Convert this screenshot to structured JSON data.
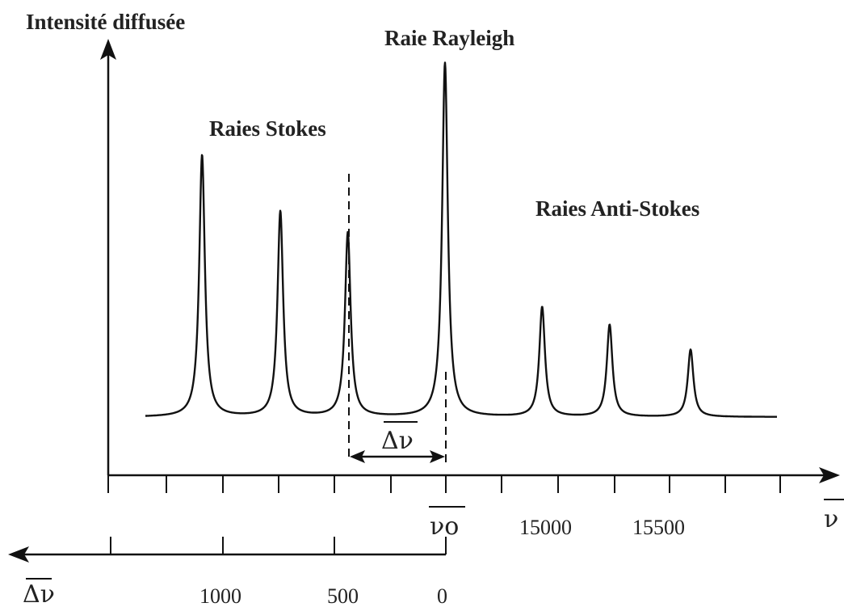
{
  "chart_data": {
    "type": "line",
    "title": "",
    "ylabel": "Intensité diffusée",
    "xlabel": "ν",
    "xlabel_overline": true,
    "secondary_axis_label": "Δν",
    "annotations": {
      "rayleigh": "Raie Rayleigh",
      "stokes": "Raies Stokes",
      "anti_stokes": "Raies Anti-Stokes",
      "shift": "Δν"
    },
    "x_ticks": {
      "nu0": "νo",
      "t15000": "15000",
      "t15500": "15500"
    },
    "shift_ticks": {
      "t1000": "1000",
      "t500": "500",
      "t0": "0"
    },
    "peaks": [
      {
        "name": "Stokes 1",
        "x": 13850,
        "height": 0.74
      },
      {
        "name": "Stokes 2",
        "x": 14140,
        "height": 0.58
      },
      {
        "name": "Stokes 3",
        "x": 14390,
        "height": 0.52
      },
      {
        "name": "Rayleigh",
        "x": 14750,
        "height": 1.0
      },
      {
        "name": "Anti-Stokes 1",
        "x": 15110,
        "height": 0.31
      },
      {
        "name": "Anti-Stokes 2",
        "x": 15360,
        "height": 0.26
      },
      {
        "name": "Anti-Stokes 3",
        "x": 15660,
        "height": 0.19
      }
    ],
    "xlim": [
      13640,
      15980
    ],
    "grid": false
  }
}
